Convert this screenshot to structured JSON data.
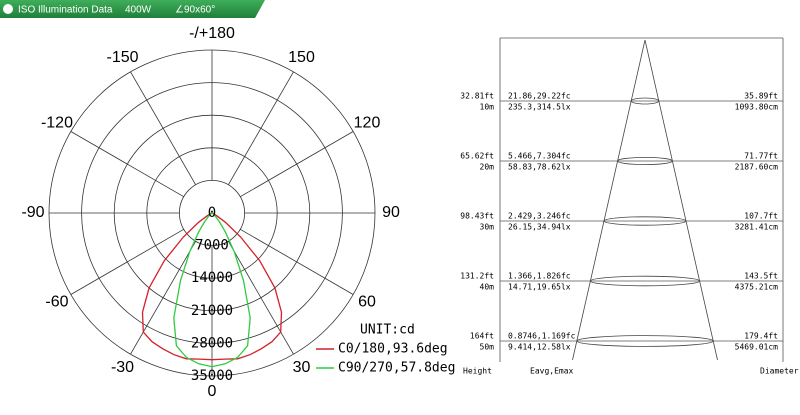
{
  "header": {
    "title": "ISO Illumination Data",
    "power": "400W",
    "beam": "∠90x60°"
  },
  "chart_data": {
    "type": "polar",
    "unit": "UNIT:cd",
    "x": [
      -90,
      -85,
      -80,
      -75,
      -70,
      -65,
      -60,
      -55,
      -50,
      -45,
      -40,
      -35,
      -30,
      -25,
      -20,
      -15,
      -10,
      -5,
      0,
      5,
      10,
      15,
      20,
      25,
      30,
      35,
      40,
      45,
      50,
      55,
      60,
      65,
      70,
      75,
      80,
      85,
      90
    ],
    "series": [
      {
        "name": "C0/180,93.6deg",
        "color": "#d4202a",
        "values": [
          0,
          20,
          50,
          100,
          200,
          400,
          1200,
          3500,
          8000,
          14500,
          21000,
          26000,
          29500,
          30500,
          31000,
          31500,
          31800,
          31500,
          31500,
          31500,
          31800,
          31500,
          31000,
          30500,
          29500,
          26000,
          21000,
          14500,
          8000,
          3500,
          1200,
          400,
          200,
          100,
          50,
          20,
          0
        ]
      },
      {
        "name": "C90/270,57.8deg",
        "color": "#2ecc40",
        "values": [
          0,
          0,
          0,
          0,
          0,
          0,
          100,
          200,
          500,
          1200,
          2500,
          5000,
          9500,
          16000,
          24000,
          29500,
          31500,
          32500,
          33000,
          32500,
          31500,
          29500,
          24000,
          16000,
          9500,
          5000,
          2500,
          1200,
          500,
          200,
          100,
          0,
          0,
          0,
          0,
          0,
          0
        ]
      }
    ],
    "angle_ticks": [
      {
        "value": 180,
        "label": "-/+180"
      },
      -150,
      150,
      -120,
      120,
      -90,
      90,
      -60,
      60,
      -30,
      30,
      0
    ],
    "rlim": [
      0,
      35000
    ],
    "rticks": [
      0,
      7000,
      14000,
      21000,
      28000,
      35000
    ]
  },
  "cone_table": {
    "columns": [
      "Height",
      "Eavg,Emax",
      "Diameter"
    ],
    "rows": [
      {
        "height_ft": "32.81ft",
        "height_m": "10m",
        "fc": "21.86,29.22fc",
        "lx": "235.3,314.5lx",
        "diameter_ft": "35.89ft",
        "diameter_cm": "1093.80cm"
      },
      {
        "height_ft": "65.62ft",
        "height_m": "20m",
        "fc": "5.466,7.304fc",
        "lx": "58.83,78.62lx",
        "diameter_ft": "71.77ft",
        "diameter_cm": "2187.60cm"
      },
      {
        "height_ft": "98.43ft",
        "height_m": "30m",
        "fc": "2.429,3.246fc",
        "lx": "26.15,34.94lx",
        "diameter_ft": "107.7ft",
        "diameter_cm": "3281.41cm"
      },
      {
        "height_ft": "131.2ft",
        "height_m": "40m",
        "fc": "1.366,1.826fc",
        "lx": "14.71,19.65lx",
        "diameter_ft": "143.5ft",
        "diameter_cm": "4375.21cm"
      },
      {
        "height_ft": "164ft",
        "height_m": "50m",
        "fc": "0.8746,1.169fc",
        "lx": "9.414,12.58lx",
        "diameter_ft": "179.4ft",
        "diameter_cm": "5469.01cm"
      }
    ]
  }
}
